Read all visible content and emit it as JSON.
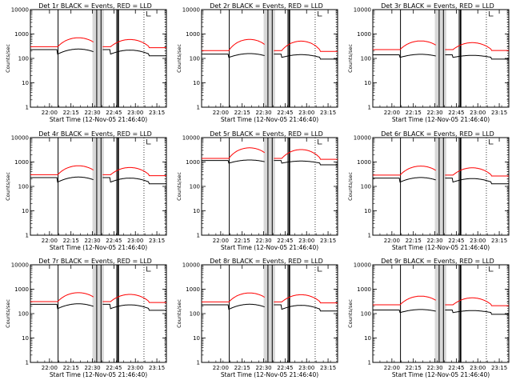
{
  "chart_data": {
    "type": "line",
    "layout": "3x3 grid",
    "yscale": "log",
    "ylim": [
      1,
      10000
    ],
    "ytick_labels": [
      "1",
      "10",
      "100",
      "1000",
      "10000"
    ],
    "xtick_labels": [
      "22:00",
      "22:15",
      "22:30",
      "22:45",
      "23:00",
      "23:15"
    ],
    "ylabel": "Counts/sec",
    "xlabel": "Start Time (12-Nov-05 21:46:40)",
    "colors": {
      "black_series": "#000000",
      "red_series": "#ff0000"
    },
    "panels": [
      {
        "title": "Det 1r BLACK = Events, RED = LLD",
        "black_level": 230,
        "red_base": 300,
        "red_peak": 700,
        "step_drop": 150
      },
      {
        "title": "Det 2r BLACK = Events, RED = LLD",
        "black_level": 150,
        "red_base": 210,
        "red_peak": 600,
        "step_drop": 110
      },
      {
        "title": "Det 3r BLACK = Events, RED = LLD",
        "black_level": 140,
        "red_base": 230,
        "red_peak": 520,
        "step_drop": 110
      },
      {
        "title": "Det 4r BLACK = Events, RED = LLD",
        "black_level": 230,
        "red_base": 300,
        "red_peak": 700,
        "step_drop": 150
      },
      {
        "title": "Det 5r BLACK = Events, RED = LLD",
        "black_level": 1150,
        "red_base": 1400,
        "red_peak": 3800,
        "step_drop": 900
      },
      {
        "title": "Det 6r BLACK = Events, RED = LLD",
        "black_level": 220,
        "red_base": 290,
        "red_peak": 680,
        "step_drop": 150
      },
      {
        "title": "Det 7r BLACK = Events, RED = LLD",
        "black_level": 240,
        "red_base": 310,
        "red_peak": 720,
        "step_drop": 160
      },
      {
        "title": "Det 8r BLACK = Events, RED = LLD",
        "black_level": 230,
        "red_base": 300,
        "red_peak": 700,
        "step_drop": 150
      },
      {
        "title": "Det 9r BLACK = Events, RED = LLD",
        "black_level": 140,
        "red_base": 230,
        "red_peak": 520,
        "step_drop": 110
      }
    ]
  }
}
